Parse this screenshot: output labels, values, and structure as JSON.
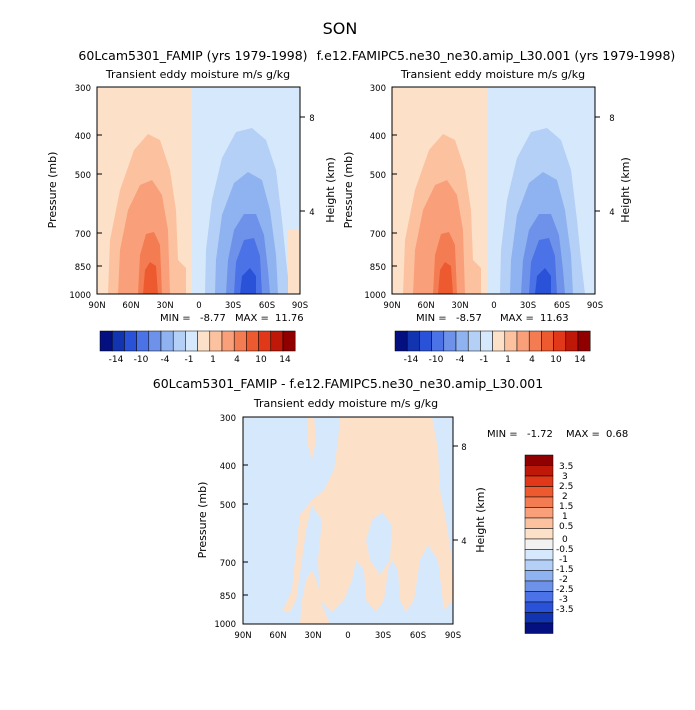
{
  "title": "SON",
  "chart_data": [
    {
      "type": "contour",
      "title": "60Lcam5301_FAMIP (yrs 1979-1998)",
      "subtitle": "Transient eddy moisture m/s g/kg",
      "xlabel": "",
      "ylabel": "Pressure (mb)",
      "y2label": "Height (km)",
      "x_ticks": [
        "90N",
        "60N",
        "30N",
        "0",
        "30S",
        "60S",
        "90S"
      ],
      "y_ticks": [
        "300",
        "400",
        "500",
        "700",
        "850",
        "1000"
      ],
      "y2_ticks": [
        "8",
        "4"
      ],
      "min_label": "MIN =",
      "min_value": "-8.77",
      "max_label": "MAX =",
      "max_value": "11.76",
      "colorbar_labels": [
        "-14",
        "-10",
        "-4",
        "-1",
        "1",
        "4",
        "10",
        "14"
      ],
      "ylim": [
        1000,
        300
      ]
    },
    {
      "type": "contour",
      "title": "f.e12.FAMIPC5.ne30_ne30.amip_L30.001 (yrs 1979-1998)",
      "subtitle": "Transient eddy moisture m/s g/kg",
      "xlabel": "",
      "ylabel": "Pressure (mb)",
      "y2label": "Height (km)",
      "x_ticks": [
        "90N",
        "60N",
        "30N",
        "0",
        "30S",
        "60S",
        "90S"
      ],
      "y_ticks": [
        "300",
        "400",
        "500",
        "700",
        "850",
        "1000"
      ],
      "y2_ticks": [
        "8",
        "4"
      ],
      "min_label": "MIN =",
      "min_value": "-8.57",
      "max_label": "MAX =",
      "max_value": "11.63",
      "colorbar_labels": [
        "-14",
        "-10",
        "-4",
        "-1",
        "1",
        "4",
        "10",
        "14"
      ],
      "ylim": [
        1000,
        300
      ]
    },
    {
      "type": "contour",
      "title": "60Lcam5301_FAMIP - f.e12.FAMIPC5.ne30_ne30.amip_L30.001",
      "subtitle": "Transient eddy moisture m/s g/kg",
      "xlabel": "",
      "ylabel": "Pressure (mb)",
      "y2label": "Height (km)",
      "x_ticks": [
        "90N",
        "60N",
        "30N",
        "0",
        "30S",
        "60S",
        "90S"
      ],
      "y_ticks": [
        "300",
        "400",
        "500",
        "700",
        "850",
        "1000"
      ],
      "y2_ticks": [
        "8",
        "4"
      ],
      "min_label": "MIN =",
      "min_value": "-1.72",
      "max_label": "MAX =",
      "max_value": "0.68",
      "colorbar_labels": [
        "3.5",
        "3",
        "2.5",
        "2",
        "1.5",
        "1",
        "0.5",
        "0",
        "-0.5",
        "-1",
        "-1.5",
        "-2",
        "-2.5",
        "-3",
        "-3.5"
      ],
      "ylim": [
        1000,
        300
      ]
    }
  ],
  "colors": {
    "pos": [
      "#fde0c8",
      "#fcc2a0",
      "#f9a07a",
      "#f47c52",
      "#ee5a30",
      "#e03818",
      "#c01808",
      "#900000"
    ],
    "neg": [
      "#d6e8fb",
      "#b4d0f6",
      "#8fb2f0",
      "#6e92ea",
      "#4b72e6",
      "#2a52d8",
      "#1234b0",
      "#041080"
    ],
    "zero": "#f2f2f2"
  }
}
